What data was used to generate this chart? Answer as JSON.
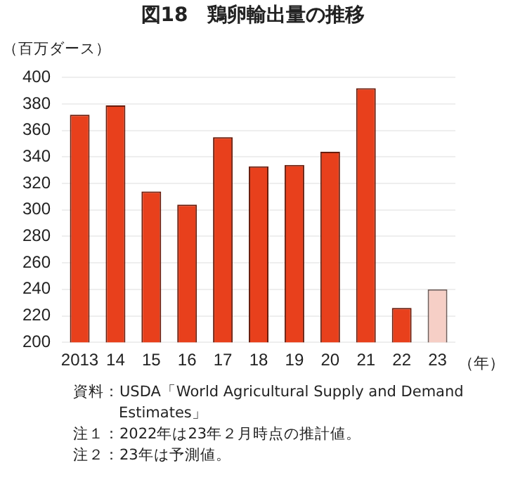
{
  "chart_data": {
    "type": "bar",
    "title": "図18　鶏卵輸出量の推移",
    "ylabel": "（百万ダース）",
    "xlabel": "（年）",
    "categories": [
      "2013",
      "14",
      "15",
      "16",
      "17",
      "18",
      "19",
      "20",
      "21",
      "22",
      "23"
    ],
    "values": [
      372,
      379,
      314,
      304,
      355,
      333,
      334,
      344,
      392,
      226,
      240
    ],
    "colors": [
      "#e8401c",
      "#e8401c",
      "#e8401c",
      "#e8401c",
      "#e8401c",
      "#e8401c",
      "#e8401c",
      "#e8401c",
      "#e8401c",
      "#e8401c",
      "#f6cfc6"
    ],
    "ylim": [
      200,
      400
    ],
    "yticks": [
      200,
      220,
      240,
      260,
      280,
      300,
      320,
      340,
      360,
      380,
      400
    ],
    "grid": "y",
    "annotations": [
      "資料：USDA「World Agricultural Supply and Demand Estimates」",
      "注１：2022年は23年２月時点の推計値。",
      "注２：23年は予測値。"
    ]
  }
}
